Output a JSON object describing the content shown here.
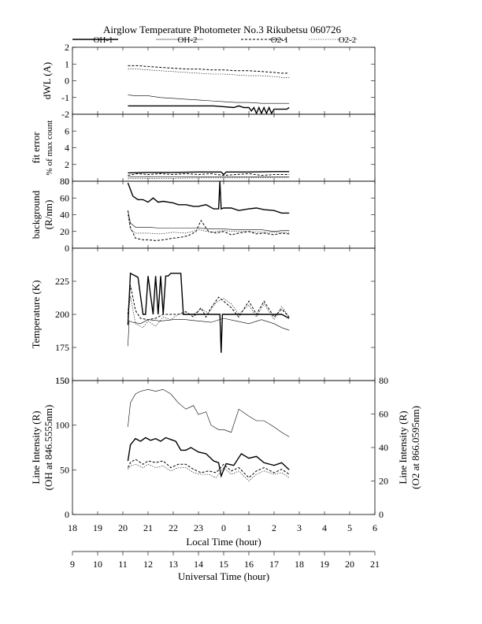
{
  "title": "Airglow Temperature Photometer No.3  Rikubetsu  060726",
  "legend": [
    {
      "label": "OH-1",
      "style": "solid-thick"
    },
    {
      "label": "OH-2",
      "style": "solid-thin"
    },
    {
      "label": "O2-1",
      "style": "dashed"
    },
    {
      "label": "O2-2",
      "style": "dotted"
    }
  ],
  "x_axis": {
    "local_label": "Local Time (hour)",
    "local_range": [
      18,
      30
    ],
    "local_ticks": [
      "18",
      "19",
      "20",
      "21",
      "22",
      "23",
      "0",
      "1",
      "2",
      "3",
      "4",
      "5",
      "6"
    ],
    "ut_label": "Universal Time (hour)",
    "ut_ticks": [
      "9",
      "10",
      "11",
      "12",
      "13",
      "14",
      "15",
      "16",
      "17",
      "18",
      "19",
      "20",
      "21"
    ]
  },
  "chart_data": [
    {
      "type": "line",
      "panel": "dwl",
      "ylabel": "dWL (A)",
      "ylim": [
        -2,
        2
      ],
      "yticks": [
        "2",
        "1",
        "0",
        "-1",
        "-2"
      ],
      "series": [
        {
          "name": "OH-1",
          "x": [
            20.2,
            21.0,
            22.0,
            23.0,
            23.6,
            24.0,
            24.4,
            24.6,
            24.8,
            25.0,
            25.1,
            25.2,
            25.3,
            25.4,
            25.5,
            25.6,
            25.7,
            25.8,
            25.9,
            26.0,
            26.2,
            26.5,
            26.6
          ],
          "y": [
            -1.5,
            -1.5,
            -1.5,
            -1.5,
            -1.5,
            -1.55,
            -1.6,
            -1.5,
            -1.6,
            -1.6,
            -1.8,
            -1.6,
            -1.95,
            -1.6,
            -1.95,
            -1.6,
            -1.95,
            -1.6,
            -1.95,
            -1.7,
            -1.7,
            -1.7,
            -1.6
          ]
        },
        {
          "name": "OH-2",
          "x": [
            20.2,
            20.5,
            21.0,
            21.5,
            22.0,
            22.5,
            23.0,
            23.5,
            24.0,
            24.5,
            25.0,
            25.5,
            26.0,
            26.3,
            26.6
          ],
          "y": [
            -0.85,
            -0.9,
            -0.9,
            -1.0,
            -1.05,
            -1.1,
            -1.15,
            -1.2,
            -1.25,
            -1.3,
            -1.3,
            -1.35,
            -1.35,
            -1.35,
            -1.35
          ]
        },
        {
          "name": "O2-1",
          "x": [
            20.2,
            20.6,
            21.0,
            21.5,
            22.0,
            22.5,
            23.0,
            23.5,
            24.0,
            24.5,
            25.0,
            25.5,
            26.0,
            26.3,
            26.6
          ],
          "y": [
            0.9,
            0.9,
            0.85,
            0.8,
            0.75,
            0.7,
            0.7,
            0.65,
            0.65,
            0.6,
            0.6,
            0.55,
            0.5,
            0.45,
            0.45
          ]
        },
        {
          "name": "O2-2",
          "x": [
            20.2,
            20.6,
            21.0,
            21.5,
            22.0,
            22.5,
            23.0,
            23.5,
            24.0,
            24.5,
            25.0,
            25.5,
            26.0,
            26.3,
            26.6
          ],
          "y": [
            0.7,
            0.7,
            0.65,
            0.6,
            0.55,
            0.5,
            0.45,
            0.4,
            0.4,
            0.35,
            0.3,
            0.3,
            0.25,
            0.2,
            0.2
          ]
        }
      ]
    },
    {
      "type": "line",
      "panel": "fit_error",
      "ylabel": "fit error",
      "ylabel2": "% of max count",
      "ylim": [
        0,
        8
      ],
      "yticks": [
        "6",
        "4",
        "2",
        "0"
      ],
      "series": [
        {
          "name": "OH-1",
          "x": [
            20.2,
            21.0,
            22.0,
            23.0,
            23.9,
            24.0,
            24.1,
            25.0,
            26.0,
            26.6
          ],
          "y": [
            1.0,
            1.05,
            1.05,
            1.1,
            1.1,
            0.8,
            1.1,
            1.1,
            1.15,
            1.15
          ]
        },
        {
          "name": "OH-2",
          "x": [
            20.2,
            21.0,
            22.0,
            23.0,
            24.0,
            25.0,
            26.0,
            26.6
          ],
          "y": [
            0.5,
            0.55,
            0.5,
            0.5,
            0.5,
            0.5,
            0.5,
            0.5
          ]
        },
        {
          "name": "O2-1",
          "x": [
            20.2,
            20.6,
            21.0,
            21.5,
            22.0,
            22.5,
            23.0,
            23.5,
            24.0,
            24.5,
            25.0,
            25.5,
            26.0,
            26.6
          ],
          "y": [
            0.7,
            0.9,
            0.8,
            0.9,
            0.8,
            0.9,
            0.8,
            0.9,
            0.7,
            0.8,
            0.9,
            0.7,
            0.8,
            0.8
          ]
        },
        {
          "name": "O2-2",
          "x": [
            20.2,
            21.0,
            22.0,
            23.0,
            24.0,
            25.0,
            26.0,
            26.6
          ],
          "y": [
            0.3,
            0.35,
            0.35,
            0.4,
            0.4,
            0.4,
            0.45,
            0.45
          ]
        }
      ]
    },
    {
      "type": "line",
      "panel": "background",
      "ylabel": "background",
      "ylabel2": "(R/nm)",
      "ylim": [
        0,
        80
      ],
      "yticks": [
        "80",
        "60",
        "40",
        "20",
        "0"
      ],
      "series": [
        {
          "name": "OH-1",
          "x": [
            20.2,
            20.4,
            20.6,
            20.8,
            21.0,
            21.2,
            21.4,
            21.6,
            21.8,
            22.0,
            22.2,
            22.5,
            22.8,
            23.0,
            23.3,
            23.6,
            23.8,
            23.85,
            23.9,
            24.0,
            24.3,
            24.6,
            25.0,
            25.3,
            25.6,
            26.0,
            26.3,
            26.6
          ],
          "y": [
            78,
            62,
            58,
            58,
            55,
            60,
            55,
            56,
            55,
            54,
            52,
            52,
            50,
            50,
            52,
            47,
            47,
            80,
            47,
            48,
            48,
            45,
            47,
            48,
            46,
            45,
            42,
            42
          ]
        },
        {
          "name": "OH-2",
          "x": [
            20.2,
            20.3,
            20.5,
            21.0,
            21.5,
            22.0,
            22.5,
            23.0,
            23.5,
            24.0,
            24.5,
            25.0,
            25.5,
            26.0,
            26.3,
            26.6
          ],
          "y": [
            45,
            30,
            25,
            25,
            24,
            24,
            24,
            24,
            23,
            23,
            22,
            22,
            22,
            20,
            21,
            21
          ]
        },
        {
          "name": "O2-1",
          "x": [
            20.2,
            20.3,
            20.5,
            20.8,
            21.0,
            21.3,
            21.6,
            22.0,
            22.3,
            22.6,
            22.9,
            23.1,
            23.4,
            23.7,
            24.0,
            24.3,
            24.6,
            25.0,
            25.3,
            25.6,
            26.0,
            26.3,
            26.6
          ],
          "y": [
            45,
            25,
            12,
            10,
            10,
            9,
            10,
            12,
            13,
            15,
            20,
            33,
            20,
            18,
            20,
            16,
            18,
            20,
            17,
            18,
            16,
            18,
            17
          ]
        },
        {
          "name": "O2-2",
          "x": [
            20.2,
            20.3,
            20.5,
            21.0,
            21.5,
            22.0,
            22.5,
            23.0,
            23.5,
            24.0,
            24.5,
            25.0,
            25.5,
            26.0,
            26.6
          ],
          "y": [
            40,
            22,
            18,
            18,
            17,
            19,
            18,
            22,
            19,
            21,
            20,
            20,
            19,
            19,
            19
          ]
        }
      ]
    },
    {
      "type": "line",
      "panel": "temperature",
      "ylabel": "Temperature (K)",
      "ylim": [
        150,
        250
      ],
      "yticks": [
        "225",
        "200",
        "175",
        "150"
      ],
      "series": [
        {
          "name": "OH-1",
          "x": [
            20.2,
            20.3,
            20.6,
            20.8,
            20.9,
            21.0,
            21.2,
            21.3,
            21.4,
            21.5,
            21.6,
            21.7,
            21.8,
            21.9,
            22.0,
            22.3,
            22.4,
            22.5,
            22.6,
            23.0,
            23.5,
            23.85,
            23.9,
            23.95,
            24.3,
            25.0,
            25.5,
            26.0,
            26.3,
            26.6
          ],
          "y": [
            192,
            231,
            228,
            200,
            200,
            229,
            200,
            229,
            200,
            229,
            200,
            229,
            229,
            231,
            231,
            231,
            200,
            200,
            200,
            200,
            200,
            200,
            171,
            200,
            200,
            200,
            200,
            200,
            200,
            197
          ]
        },
        {
          "name": "OH-2",
          "x": [
            20.2,
            20.25,
            20.4,
            20.7,
            21.0,
            21.5,
            22.0,
            22.5,
            23.0,
            23.5,
            24.0,
            24.5,
            25.0,
            25.5,
            26.0,
            26.3,
            26.6
          ],
          "y": [
            176,
            195,
            194,
            193,
            196,
            195,
            196,
            196,
            195,
            194,
            197,
            195,
            193,
            196,
            193,
            190,
            188
          ]
        },
        {
          "name": "O2-1",
          "x": [
            20.2,
            20.3,
            20.5,
            20.7,
            21.0,
            21.3,
            21.6,
            21.9,
            22.2,
            22.5,
            22.8,
            23.1,
            23.3,
            23.5,
            23.8,
            24.0,
            24.3,
            24.6,
            25.0,
            25.3,
            25.6,
            26.0,
            26.3,
            26.6
          ],
          "y": [
            200,
            222,
            203,
            197,
            196,
            197,
            200,
            200,
            200,
            202,
            198,
            205,
            198,
            205,
            213,
            210,
            205,
            198,
            210,
            200,
            210,
            198,
            204,
            198
          ]
        },
        {
          "name": "O2-2",
          "x": [
            20.2,
            20.3,
            20.5,
            20.8,
            21.0,
            21.3,
            21.6,
            21.9,
            22.2,
            22.5,
            22.8,
            23.1,
            23.4,
            23.7,
            24.0,
            24.3,
            24.6,
            25.0,
            25.3,
            25.6,
            26.0,
            26.3,
            26.6
          ],
          "y": [
            198,
            214,
            193,
            190,
            195,
            191,
            198,
            196,
            200,
            200,
            200,
            204,
            201,
            209,
            212,
            208,
            200,
            207,
            198,
            208,
            196,
            206,
            198
          ]
        }
      ]
    },
    {
      "type": "line",
      "panel": "intensity",
      "ylabel": "Line Intensity (R)",
      "ylabel2": "(OH at 846.5555nm)",
      "ylabel_right": "Line Intensity (R)",
      "ylabel_right2": "(O2 at 866.0595nm)",
      "ylim": [
        0,
        150
      ],
      "ylim_right": [
        0,
        80
      ],
      "yticks": [
        "150",
        "100",
        "50",
        "0"
      ],
      "yticks_right": [
        "80",
        "60",
        "40",
        "20",
        "0"
      ],
      "series": [
        {
          "name": "OH-1",
          "axis": "left",
          "x": [
            20.2,
            20.3,
            20.5,
            20.7,
            20.9,
            21.1,
            21.3,
            21.5,
            21.7,
            21.9,
            22.1,
            22.3,
            22.5,
            22.7,
            23.0,
            23.3,
            23.6,
            23.8,
            23.9,
            24.1,
            24.4,
            24.7,
            25.0,
            25.3,
            25.6,
            26.0,
            26.3,
            26.6
          ],
          "y": [
            60,
            78,
            85,
            82,
            86,
            83,
            85,
            82,
            86,
            84,
            82,
            72,
            72,
            75,
            70,
            68,
            60,
            58,
            43,
            57,
            55,
            68,
            63,
            65,
            58,
            55,
            58,
            50
          ]
        },
        {
          "name": "OH-2",
          "axis": "left",
          "x": [
            20.2,
            20.3,
            20.5,
            20.7,
            21.0,
            21.3,
            21.6,
            21.9,
            22.2,
            22.5,
            22.8,
            23.0,
            23.3,
            23.5,
            23.8,
            24.0,
            24.3,
            24.6,
            25.0,
            25.3,
            25.6,
            26.0,
            26.3,
            26.6
          ],
          "y": [
            98,
            125,
            135,
            138,
            140,
            138,
            140,
            135,
            125,
            118,
            122,
            112,
            115,
            100,
            95,
            95,
            92,
            118,
            110,
            105,
            105,
            98,
            92,
            87
          ]
        },
        {
          "name": "O2-1",
          "axis": "right",
          "x": [
            20.2,
            20.3,
            20.5,
            20.8,
            21.0,
            21.3,
            21.6,
            21.9,
            22.2,
            22.5,
            22.8,
            23.1,
            23.4,
            23.7,
            24.0,
            24.3,
            24.6,
            25.0,
            25.3,
            25.6,
            26.0,
            26.3,
            26.6
          ],
          "y": [
            28,
            31,
            33,
            30,
            32,
            31,
            32,
            28,
            30,
            30,
            27,
            25,
            26,
            25,
            30,
            26,
            28,
            22,
            26,
            28,
            25,
            27,
            24
          ]
        },
        {
          "name": "O2-2",
          "axis": "right",
          "x": [
            20.2,
            20.3,
            20.5,
            20.8,
            21.0,
            21.3,
            21.6,
            21.9,
            22.2,
            22.5,
            22.8,
            23.1,
            23.4,
            23.7,
            24.0,
            24.3,
            24.6,
            25.0,
            25.3,
            25.6,
            26.0,
            26.3,
            26.6
          ],
          "y": [
            27,
            29,
            30,
            28,
            30,
            28,
            29,
            26,
            28,
            28,
            25,
            24,
            24,
            22,
            28,
            24,
            26,
            20,
            24,
            26,
            24,
            25,
            22
          ]
        }
      ]
    }
  ]
}
